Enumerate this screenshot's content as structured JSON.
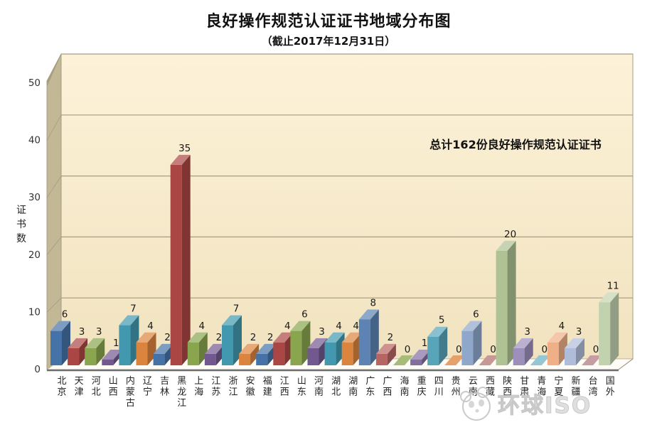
{
  "header": {
    "title": "良好操作规范认证证书地域分布图",
    "subtitle": "（截止2017年12月31日）"
  },
  "watermark": {
    "text": "环球ISO",
    "icon": "panda-logo"
  },
  "chart_data": {
    "type": "bar",
    "style": "3d-column",
    "title": "良好操作规范认证证书地域分布图",
    "subtitle": "（截止2017年12月31日）",
    "annotation": "总计162份良好操作规范认证证书",
    "total": 162,
    "ylabel": "证书数",
    "xlabel": "",
    "ylim": [
      0,
      50
    ],
    "yticks": [
      0,
      10,
      20,
      30,
      40,
      50
    ],
    "grid": true,
    "legend": "none",
    "categories": [
      "北京",
      "天津",
      "河北",
      "山西",
      "内蒙古",
      "辽宁",
      "吉林",
      "黑龙江",
      "上海",
      "江苏",
      "浙江",
      "安徽",
      "福建",
      "江西",
      "山东",
      "河南",
      "湖北",
      "湖南",
      "广东",
      "广西",
      "海南",
      "重庆",
      "四川",
      "贵州",
      "云南",
      "西藏",
      "陕西",
      "甘肃",
      "青海",
      "宁夏",
      "新疆",
      "台湾",
      "国外"
    ],
    "values": [
      6,
      3,
      3,
      1,
      7,
      4,
      2,
      35,
      4,
      2,
      7,
      2,
      2,
      4,
      6,
      3,
      4,
      4,
      8,
      2,
      0,
      1,
      5,
      0,
      6,
      0,
      20,
      3,
      0,
      4,
      3,
      0,
      11
    ],
    "bar_colors": [
      "#4572A7",
      "#AA4643",
      "#89A54E",
      "#71588F",
      "#4198AF",
      "#DB843D",
      "#4572A7",
      "#AA4643",
      "#89A54E",
      "#71588F",
      "#4198AF",
      "#DB843D",
      "#4572A7",
      "#AA4643",
      "#89A54E",
      "#71588F",
      "#4198AF",
      "#DB843D",
      "#5C83B4",
      "#B66562",
      "#9AB366",
      "#826FA0",
      "#58A5BA",
      "#E09556",
      "#8FA7CB",
      "#C08A87",
      "#AEC293",
      "#9C8FBC",
      "#85BECE",
      "#EFAF87",
      "#AFBCDA",
      "#BE9094",
      "#C3D2AE"
    ],
    "colors": {
      "wall_back_top": "#FDF2D9",
      "wall_back_bottom": "#F1E3BF",
      "wall_left": "#C2B896",
      "wall_left_dark": "#ABA184",
      "floor": "#FDFCF7",
      "gridline": "#A59C82",
      "axis_line": "#6E6E6E",
      "tick_text": "#333333",
      "value_text": "#1A1A1A",
      "watermark": "#CFCFCF"
    }
  }
}
